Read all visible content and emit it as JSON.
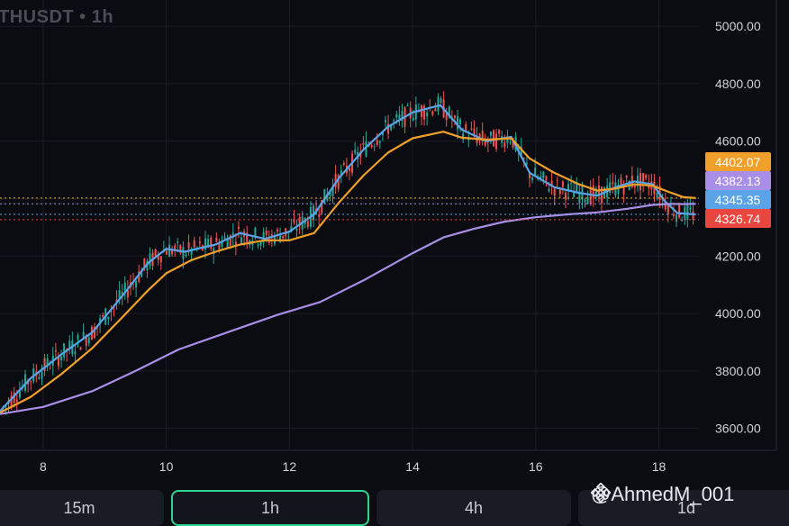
{
  "header": {
    "symbol_text": "THUSDT • 1h"
  },
  "price_axis": {
    "ticks": [
      "5000.00",
      "4800.00",
      "4600.00",
      "4400.00",
      "4200.00",
      "4000.00",
      "3800.00",
      "3600.00"
    ],
    "tick_values": [
      5000,
      4800,
      4600,
      4400,
      4200,
      4000,
      3800,
      3600
    ],
    "badges": [
      {
        "label": "4402.07",
        "value": 4402.07,
        "color": "#f0a02a",
        "text_color": "#ffffff"
      },
      {
        "label": "4382.13",
        "value": 4382.13,
        "color": "#a98ee8",
        "text_color": "#ffffff"
      },
      {
        "label": "4345.35",
        "value": 4345.35,
        "color": "#5aa3e6",
        "text_color": "#ffffff"
      },
      {
        "label": "4326.74",
        "value": 4326.74,
        "color": "#e8463f",
        "text_color": "#ffffff"
      }
    ]
  },
  "time_axis": {
    "ticks": [
      "8",
      "10",
      "12",
      "14",
      "16",
      "18"
    ],
    "tick_values": [
      8,
      10,
      12,
      14,
      16,
      18
    ]
  },
  "timeframes": [
    {
      "label": "15m",
      "active": false
    },
    {
      "label": "1h",
      "active": true
    },
    {
      "label": "4h",
      "active": false
    },
    {
      "label": "1d",
      "active": false
    }
  ],
  "watermark": {
    "text": "@AhmedM_001",
    "icon": "binance-logo-icon"
  },
  "colors": {
    "background": "#0b0c11",
    "grid": "#1b1d24",
    "up": "#26a69a",
    "down": "#ef5350",
    "ma_fast": "#5aa3e6",
    "ma_mid": "#f0a02a",
    "ma_slow": "#a98ee8",
    "active_tab_border": "#2fd393"
  },
  "chart_data": {
    "type": "line",
    "title": "",
    "xlabel": "",
    "ylabel": "",
    "xlim": [
      7.3,
      18.65
    ],
    "ylim": [
      3530,
      5060
    ],
    "grid": true,
    "series": [
      {
        "key": "ma_fast",
        "color": "#5aa3e6",
        "x": [
          7.3,
          7.8,
          8.3,
          8.8,
          9.3,
          9.7,
          10.0,
          10.3,
          10.8,
          11.2,
          11.6,
          12.0,
          12.4,
          12.8,
          13.2,
          13.6,
          14.0,
          14.45,
          14.8,
          15.2,
          15.6,
          15.9,
          16.3,
          16.7,
          17.0,
          17.3,
          17.6,
          17.9,
          18.1,
          18.3,
          18.6
        ],
        "y": [
          3660,
          3775,
          3858,
          3935,
          4065,
          4175,
          4225,
          4215,
          4240,
          4280,
          4260,
          4285,
          4345,
          4470,
          4570,
          4650,
          4700,
          4725,
          4640,
          4600,
          4615,
          4490,
          4440,
          4420,
          4410,
          4440,
          4460,
          4450,
          4390,
          4350,
          4345
        ]
      },
      {
        "key": "ma_mid",
        "color": "#f0a02a",
        "x": [
          7.3,
          7.8,
          8.3,
          8.8,
          9.3,
          9.7,
          10.0,
          10.4,
          10.8,
          11.2,
          11.6,
          12.0,
          12.4,
          12.8,
          13.2,
          13.6,
          14.0,
          14.5,
          14.8,
          15.2,
          15.6,
          15.9,
          16.3,
          16.7,
          17.0,
          17.3,
          17.6,
          17.9,
          18.2,
          18.4,
          18.6
        ],
        "y": [
          3655,
          3710,
          3790,
          3880,
          3990,
          4080,
          4140,
          4185,
          4215,
          4240,
          4255,
          4255,
          4280,
          4385,
          4480,
          4560,
          4610,
          4633,
          4612,
          4605,
          4610,
          4540,
          4490,
          4450,
          4428,
          4435,
          4450,
          4445,
          4420,
          4405,
          4402
        ]
      },
      {
        "key": "ma_slow",
        "color": "#a98ee8",
        "x": [
          7.3,
          8.0,
          8.8,
          9.5,
          10.2,
          11.0,
          11.8,
          12.5,
          13.2,
          14.0,
          14.5,
          15.0,
          15.5,
          16.0,
          16.5,
          17.0,
          17.5,
          17.9,
          18.2,
          18.4,
          18.6
        ],
        "y": [
          3650,
          3675,
          3730,
          3800,
          3875,
          3935,
          3995,
          4040,
          4115,
          4210,
          4265,
          4295,
          4320,
          4335,
          4345,
          4352,
          4365,
          4378,
          4382,
          4381,
          4382
        ]
      }
    ],
    "price_lines": [
      4402.07,
      4382.13,
      4345.35,
      4326.74
    ]
  }
}
